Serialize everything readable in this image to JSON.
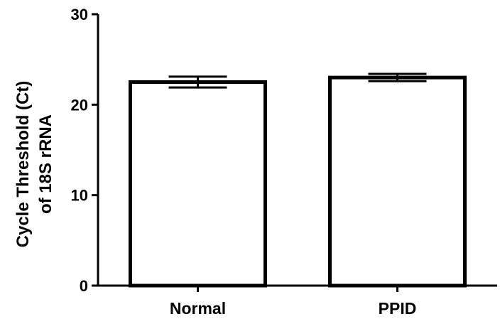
{
  "chart_data": {
    "type": "bar",
    "categories": [
      "Normal",
      "PPID"
    ],
    "values": [
      22.5,
      23.0
    ],
    "errors": [
      0.6,
      0.4
    ],
    "ylabel_lines": [
      "Cycle Threshold (Ct)",
      "of 18S rRNA"
    ],
    "xlabel": "",
    "title": "",
    "ylim": [
      0,
      30
    ],
    "yticks": [
      0,
      10,
      20,
      30
    ],
    "grid": false,
    "bar_fill": "#ffffff",
    "bar_stroke": "#000000"
  }
}
